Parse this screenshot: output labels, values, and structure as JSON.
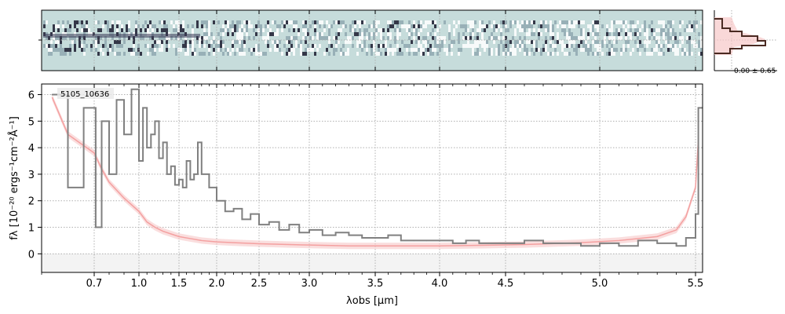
{
  "figure": {
    "object_id": "5105_10636",
    "profile_label": "0.00 ± 0.65"
  },
  "colors": {
    "data_line": "#808080",
    "model_line": "#f4a0a0",
    "model_fill": "#f6c8c8",
    "spectrum_bg": "#c6dcdb",
    "grid": "#b0b0b0",
    "profile_line": "#4a2a22"
  },
  "chart_data": {
    "type": "line",
    "xlabel": "λobs [μm]",
    "ylabel": "fλ [10⁻²⁰ ergs⁻¹cm⁻²Å⁻¹]",
    "x_ticks": [
      "0.7",
      "1.0",
      "1.5",
      "2.0",
      "2.5",
      "3.0",
      "3.5",
      "4.0",
      "4.5",
      "5.0",
      "5.5"
    ],
    "x_tick_values": [
      0.7,
      1.0,
      1.5,
      2.0,
      2.5,
      3.0,
      3.5,
      4.0,
      4.5,
      5.0,
      5.5
    ],
    "y_ticks": [
      "0",
      "1",
      "2",
      "3",
      "4",
      "5",
      "6"
    ],
    "xlim": [
      0.6,
      5.55
    ],
    "ylim": [
      -0.7,
      6.4
    ],
    "grid": true,
    "series": [
      {
        "style": "step",
        "x": [
          0.62,
          0.65,
          0.68,
          0.71,
          0.75,
          0.8,
          0.85,
          0.9,
          0.95,
          1.0,
          1.05,
          1.1,
          1.15,
          1.2,
          1.25,
          1.3,
          1.35,
          1.4,
          1.45,
          1.5,
          1.55,
          1.6,
          1.65,
          1.7,
          1.75,
          1.8,
          1.9,
          2.0,
          2.1,
          2.2,
          2.3,
          2.4,
          2.5,
          2.6,
          2.7,
          2.8,
          2.9,
          3.0,
          3.1,
          3.2,
          3.3,
          3.4,
          3.5,
          3.6,
          3.7,
          3.8,
          3.9,
          4.0,
          4.1,
          4.2,
          4.3,
          4.4,
          4.5,
          4.6,
          4.7,
          4.8,
          4.9,
          5.0,
          5.1,
          5.2,
          5.3,
          5.4,
          5.45,
          5.5,
          5.52
        ],
        "y": [
          6.0,
          2.5,
          5.5,
          1.0,
          5.0,
          3.0,
          5.8,
          4.5,
          6.2,
          3.5,
          5.5,
          4.0,
          4.5,
          5.0,
          3.6,
          4.2,
          3.0,
          3.3,
          2.6,
          2.8,
          2.5,
          3.5,
          2.8,
          3.0,
          4.2,
          3.0,
          2.5,
          2.0,
          1.6,
          1.7,
          1.3,
          1.5,
          1.1,
          1.2,
          0.9,
          1.1,
          0.8,
          0.9,
          0.7,
          0.8,
          0.7,
          0.6,
          0.6,
          0.7,
          0.5,
          0.5,
          0.5,
          0.5,
          0.4,
          0.5,
          0.4,
          0.4,
          0.4,
          0.5,
          0.4,
          0.4,
          0.3,
          0.4,
          0.3,
          0.5,
          0.4,
          0.3,
          0.6,
          1.5,
          5.5
        ]
      },
      {
        "style": "model",
        "x": [
          0.62,
          0.65,
          0.7,
          0.75,
          0.8,
          0.9,
          1.0,
          1.1,
          1.2,
          1.3,
          1.4,
          1.5,
          1.6,
          1.8,
          2.0,
          2.2,
          2.5,
          2.8,
          3.0,
          3.3,
          3.6,
          4.0,
          4.3,
          4.6,
          4.9,
          5.1,
          5.3,
          5.4,
          5.45,
          5.5,
          5.52
        ],
        "y": [
          5.9,
          4.5,
          3.8,
          3.2,
          2.7,
          2.1,
          1.6,
          1.2,
          1.0,
          0.85,
          0.75,
          0.65,
          0.6,
          0.5,
          0.45,
          0.42,
          0.38,
          0.35,
          0.33,
          0.3,
          0.3,
          0.3,
          0.32,
          0.35,
          0.42,
          0.5,
          0.65,
          0.9,
          1.4,
          2.5,
          4.3
        ]
      }
    ]
  }
}
